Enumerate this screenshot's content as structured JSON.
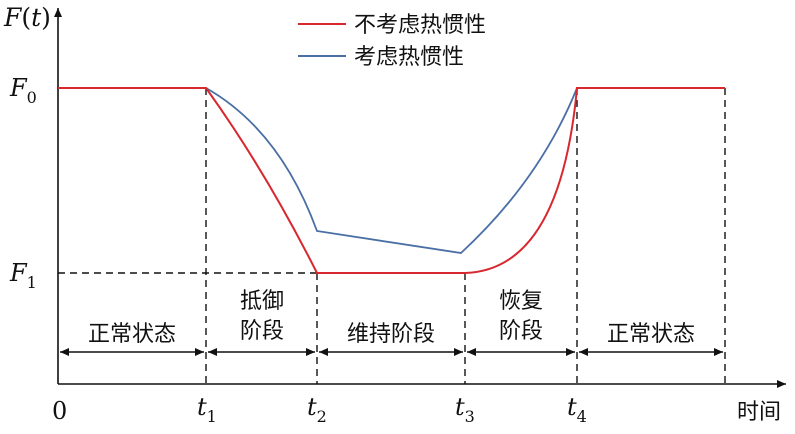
{
  "y_axis_label": {
    "main": "F",
    "open": "(",
    "var": "t",
    "close": ")"
  },
  "y_ticks": [
    {
      "main": "F",
      "sub": "0"
    },
    {
      "main": "F",
      "sub": "1"
    }
  ],
  "x_origin": "0",
  "x_ticks": [
    {
      "main": "t",
      "sub": "1"
    },
    {
      "main": "t",
      "sub": "2"
    },
    {
      "main": "t",
      "sub": "3"
    },
    {
      "main": "t",
      "sub": "4"
    }
  ],
  "x_axis_label": "时间",
  "legend": [
    {
      "label": "不考虑热惯性",
      "color": "#d7282f"
    },
    {
      "label": "考虑热惯性",
      "color": "#4a6fa5"
    }
  ],
  "phases": [
    {
      "lines": [
        "正常状态"
      ]
    },
    {
      "lines": [
        "抵御",
        "阶段"
      ]
    },
    {
      "lines": [
        "维持阶段"
      ]
    },
    {
      "lines": [
        "恢复",
        "阶段"
      ]
    },
    {
      "lines": [
        "正常状态"
      ]
    }
  ],
  "colors": {
    "axis": "#111111",
    "red": "#d7282f",
    "blue": "#4a6fa5"
  }
}
